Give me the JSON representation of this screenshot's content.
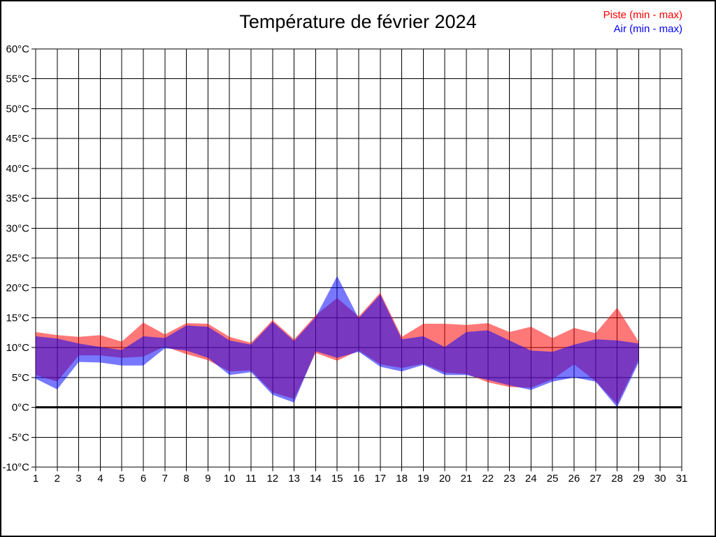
{
  "title": "Température de février 2024",
  "legend": [
    {
      "label": "Piste (min - max)",
      "color": "#ff0000"
    },
    {
      "label": "Air (min - max)",
      "color": "#0000ff"
    }
  ],
  "axes": {
    "y_tick_labels": [
      "60°C",
      "55°C",
      "50°C",
      "45°C",
      "40°C",
      "35°C",
      "30°C",
      "25°C",
      "20°C",
      "15°C",
      "10°C",
      "5°C",
      "0°C",
      "-5°C",
      "-10°C"
    ],
    "x_tick_labels": [
      "1",
      "2",
      "3",
      "4",
      "5",
      "6",
      "7",
      "8",
      "9",
      "10",
      "11",
      "12",
      "13",
      "14",
      "15",
      "16",
      "17",
      "18",
      "19",
      "20",
      "21",
      "22",
      "23",
      "24",
      "25",
      "26",
      "27",
      "28",
      "29",
      "30",
      "31"
    ]
  },
  "chart_data": {
    "type": "area",
    "title": "Température de février 2024",
    "xlabel": "",
    "ylabel": "°C",
    "xlim": [
      1,
      31
    ],
    "ylim": [
      -10,
      60
    ],
    "y_step": 5,
    "grid": true,
    "zero_line": true,
    "legend_position": "top-right",
    "x": [
      1,
      2,
      3,
      4,
      5,
      6,
      7,
      8,
      9,
      10,
      11,
      12,
      13,
      14,
      15,
      16,
      17,
      18,
      19,
      20,
      21,
      22,
      23,
      24,
      25,
      26,
      27,
      28,
      29
    ],
    "series": [
      {
        "name": "Piste (min - max)",
        "fill": "rgba(255,0,0,0.53)",
        "min": [
          5.4,
          4.3,
          8.7,
          8.7,
          8.3,
          8.5,
          10.2,
          8.9,
          7.9,
          6.0,
          6.2,
          2.5,
          1.4,
          9.1,
          7.8,
          9.5,
          7.2,
          6.6,
          7.3,
          5.8,
          5.6,
          4.2,
          3.4,
          3.3,
          4.7,
          7.2,
          4.4,
          0.5,
          8.0
        ],
        "max": [
          12.6,
          12.1,
          11.8,
          12.1,
          11.0,
          14.2,
          12.2,
          14.1,
          14.0,
          11.8,
          10.8,
          14.6,
          11.4,
          15.4,
          18.3,
          15.2,
          19.2,
          11.8,
          14.0,
          14.0,
          13.8,
          14.1,
          12.6,
          13.5,
          11.6,
          13.3,
          12.4,
          16.7,
          11.0
        ]
      },
      {
        "name": "Air (min - max)",
        "fill": "rgba(0,0,255,0.53)",
        "min": [
          4.8,
          3.0,
          7.6,
          7.5,
          7.0,
          7.0,
          9.9,
          9.5,
          8.3,
          5.4,
          5.9,
          2.1,
          0.8,
          9.4,
          8.3,
          9.3,
          6.8,
          6.0,
          7.1,
          5.4,
          5.4,
          4.6,
          3.7,
          2.9,
          4.3,
          5.0,
          4.3,
          0.0,
          7.5
        ],
        "max": [
          11.9,
          11.5,
          10.7,
          10.1,
          9.6,
          11.9,
          11.6,
          13.7,
          13.5,
          11.2,
          10.5,
          14.3,
          11.1,
          15.1,
          22.0,
          14.9,
          18.9,
          11.4,
          11.9,
          10.1,
          12.6,
          12.9,
          11.2,
          9.5,
          9.3,
          10.5,
          11.4,
          11.2,
          10.7
        ]
      }
    ]
  }
}
